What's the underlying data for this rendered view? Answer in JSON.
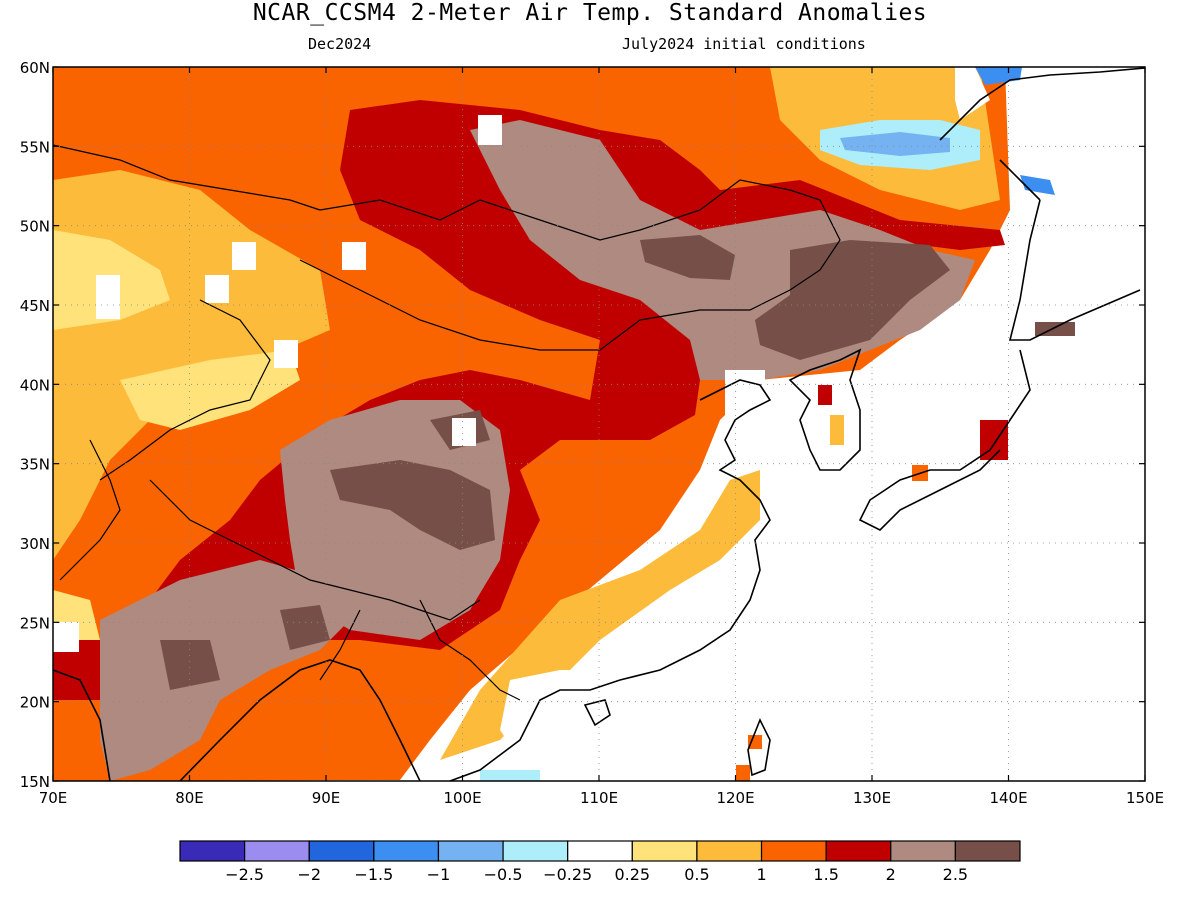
{
  "header": {
    "title": "NCAR_CCSM4 2-Meter Air Temp. Standard Anomalies",
    "valid_month": "Dec2024",
    "init": "July2024 initial conditions"
  },
  "map": {
    "lon_range": [
      70,
      150
    ],
    "lat_range": [
      15,
      60
    ],
    "lon_ticks": [
      "70E",
      "80E",
      "90E",
      "100E",
      "110E",
      "120E",
      "130E",
      "140E",
      "150E"
    ],
    "lat_ticks": [
      "15N",
      "20N",
      "25N",
      "30N",
      "35N",
      "40N",
      "45N",
      "50N",
      "55N",
      "60N"
    ],
    "grid": true
  },
  "colorbar": {
    "colors": [
      "#3a2ab8",
      "#9b8cf0",
      "#2266dd",
      "#3c8ff0",
      "#74b2f2",
      "#aeeefa",
      "#ffffff",
      "#ffe27a",
      "#fdbb3b",
      "#fa6400",
      "#c00000",
      "#ae8a80",
      "#765048"
    ],
    "labels": [
      "-2.5",
      "-2",
      "-1.5",
      "-1",
      "-0.5",
      "-0.25",
      "0.25",
      "0.5",
      "1",
      "1.5",
      "2",
      "2.5"
    ]
  }
}
